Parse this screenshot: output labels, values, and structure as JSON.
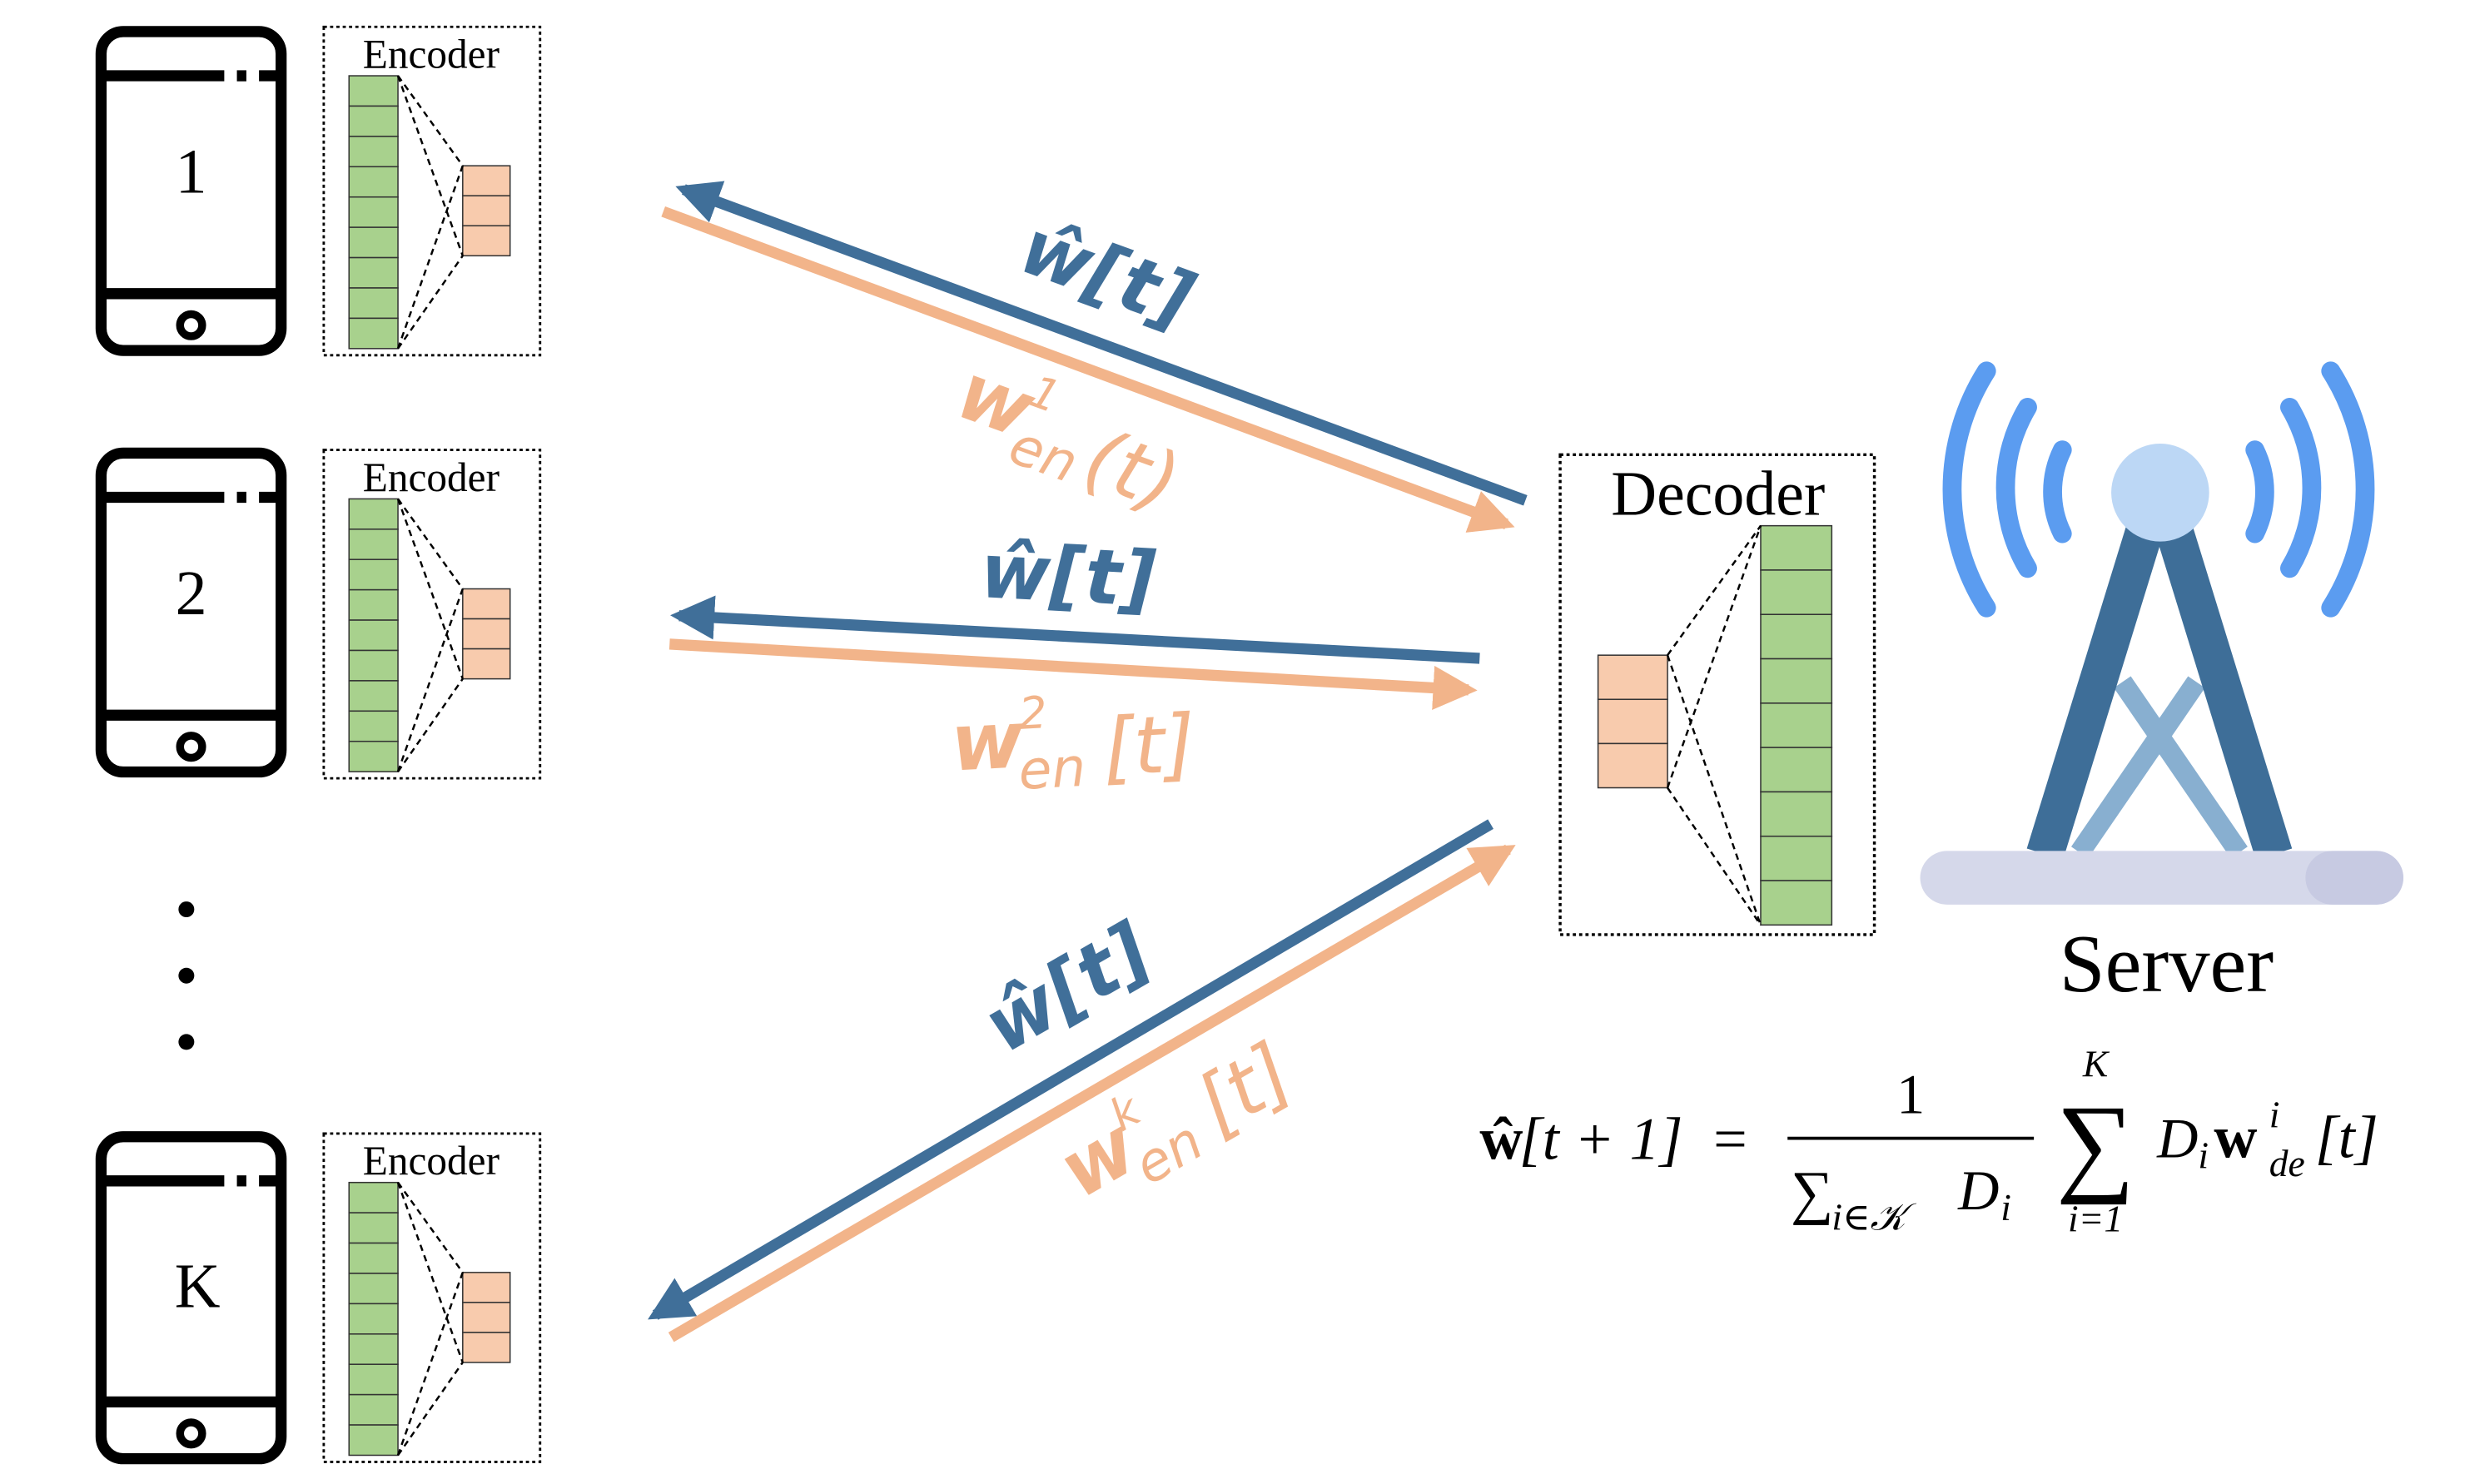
{
  "devices": [
    {
      "id": "1",
      "label": "1",
      "encoder_title": "Encoder"
    },
    {
      "id": "2",
      "label": "2",
      "encoder_title": "Encoder"
    },
    {
      "id": "k",
      "label": "K",
      "encoder_title": "Encoder"
    }
  ],
  "decoder": {
    "title": "Decoder"
  },
  "server": {
    "label": "Server"
  },
  "links": {
    "down_weight": "ŵ[t]",
    "up_1": {
      "base": "w",
      "sub": "en",
      "sup": "1",
      "arg": "(t)"
    },
    "up_2": {
      "base": "w",
      "sub": "en",
      "sup": "2",
      "arg": "[t]"
    },
    "up_k": {
      "base": "w",
      "sub": "en",
      "sup": "k",
      "arg": "[t]"
    }
  },
  "formula": {
    "lhs_w": "ŵ",
    "lhs_arg": "[t + 1]",
    "equals": "=",
    "numerator": "1",
    "sum_sign_denominator": "∑",
    "denominator_sub": "i∈𝒦",
    "denominator_var": "D",
    "denominator_var_sub": "i",
    "sum_sign": "∑",
    "sum_upper": "K",
    "sum_lower": "i=1",
    "term_D": "D",
    "term_D_sub": "i",
    "term_w": "w",
    "term_w_sup": "i",
    "term_w_sub": "de",
    "term_arg": "[t]"
  },
  "colors": {
    "blue_arrow": "#406F99",
    "orange_arrow": "#F2B48A",
    "encoder_green": "#A8D18D",
    "encoder_orange": "#F8CBAD",
    "tower_dark": "#3E6E98",
    "tower_light": "#88AFD0",
    "wave_blue": "#5B9CF0",
    "tower_top": "#BCD7F5",
    "base_lavender": "#D5D8EA"
  }
}
